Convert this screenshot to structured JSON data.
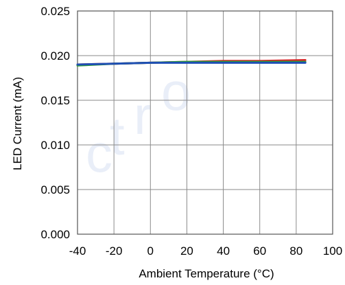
{
  "chart_data": {
    "type": "line",
    "title": "",
    "xlabel": "Ambient Temperature (°C)",
    "ylabel": "LED Current (mA)",
    "xlim": [
      -40,
      100
    ],
    "ylim": [
      0,
      0.025
    ],
    "x_ticks": [
      -40,
      -20,
      0,
      20,
      40,
      60,
      80,
      100
    ],
    "y_ticks": [
      0.0,
      0.005,
      0.01,
      0.015,
      0.02,
      0.025
    ],
    "x_tick_labels": [
      "-40",
      "-20",
      "0",
      "20",
      "40",
      "60",
      "80",
      "100"
    ],
    "y_tick_labels": [
      "0.000",
      "0.005",
      "0.010",
      "0.015",
      "0.020",
      "0.025"
    ],
    "grid": true,
    "series": [
      {
        "color": "#d62728",
        "x": [
          -40,
          -20,
          0,
          20,
          40,
          60,
          85
        ],
        "values": [
          0.019,
          0.0191,
          0.0192,
          0.0193,
          0.0194,
          0.0194,
          0.0195
        ]
      },
      {
        "color": "#2ca02c",
        "x": [
          -40,
          -20,
          0,
          20,
          40,
          60,
          85
        ],
        "values": [
          0.0189,
          0.0191,
          0.0192,
          0.0193,
          0.0193,
          0.0193,
          0.0193
        ]
      },
      {
        "color": "#1f4fb4",
        "x": [
          -40,
          -20,
          0,
          20,
          40,
          60,
          85
        ],
        "values": [
          0.019,
          0.0191,
          0.0192,
          0.0192,
          0.0192,
          0.0192,
          0.0192
        ]
      }
    ]
  },
  "watermark": {
    "color": "#e9eef8",
    "letters": [
      "c",
      "t",
      "r",
      "o"
    ]
  }
}
